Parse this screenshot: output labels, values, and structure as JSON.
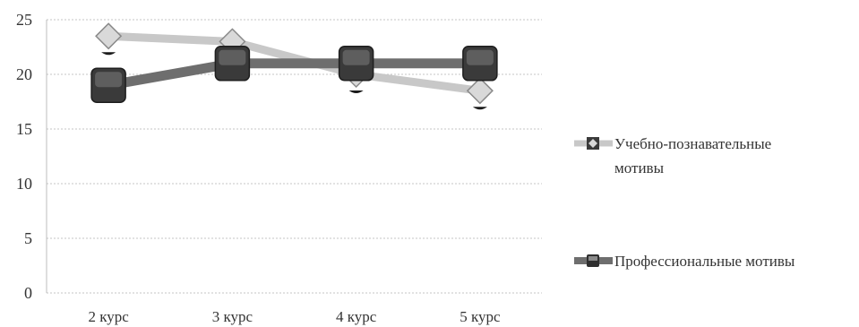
{
  "chart_data": {
    "type": "line",
    "title": "",
    "xlabel": "",
    "ylabel": "",
    "categories": [
      "2 курс",
      "3 курс",
      "4 курс",
      "5 курс"
    ],
    "ylim": [
      0,
      25
    ],
    "yticks": [
      0,
      5,
      10,
      15,
      20,
      25
    ],
    "grid": "horizontal dotted",
    "legend_position": "right",
    "series": [
      {
        "name": "Учебно-познавательные мотивы",
        "name_lines": [
          "Учебно-познавательные",
          "мотивы"
        ],
        "values": [
          23.5,
          23,
          20,
          18.5
        ],
        "color": "#c8c8c8",
        "marker": "diamond"
      },
      {
        "name": "Профессиональные мотивы",
        "name_lines": [
          "Профессиональные мотивы"
        ],
        "values": [
          19,
          21,
          21,
          21
        ],
        "color": "#6e6e6e",
        "marker": "square"
      }
    ]
  }
}
